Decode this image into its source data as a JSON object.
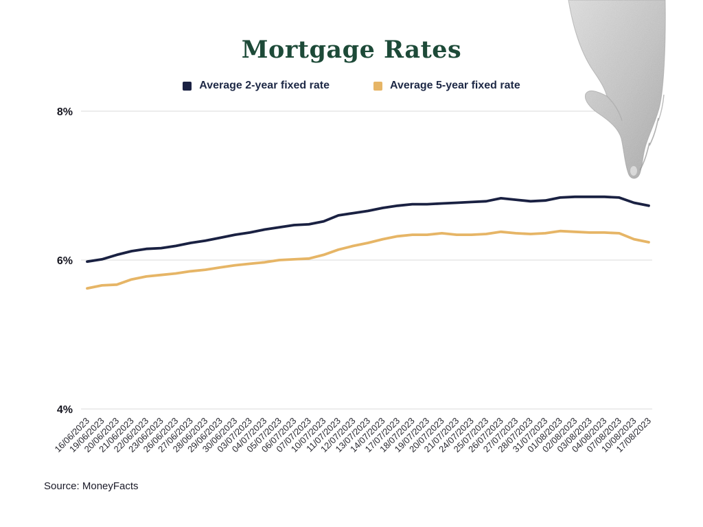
{
  "title": "Mortgage Rates",
  "title_color": "#1d4a38",
  "source": "Source: MoneyFacts",
  "chart_data": {
    "type": "line",
    "title": "Mortgage Rates",
    "x": [
      "16/06/2023",
      "19/06/2023",
      "20/06/2023",
      "21/06/2023",
      "22/06/2023",
      "23/06/2023",
      "26/06/2023",
      "27/06/2023",
      "28/06/2023",
      "29/06/2023",
      "30/06/2023",
      "03/07/2023",
      "04/07/2023",
      "05/07/2023",
      "06/07/2023",
      "07/07/2023",
      "10/07/2023",
      "11/07/2023",
      "12/07/2023",
      "13/07/2023",
      "14/07/2023",
      "17/07/2023",
      "18/07/2023",
      "19/07/2023",
      "20/07/2023",
      "21/07/2023",
      "24/07/2023",
      "25/07/2023",
      "26/07/2023",
      "27/07/2023",
      "28/07/2023",
      "31/07/2023",
      "01/08/2023",
      "02/08/2023",
      "03/08/2023",
      "04/08/2023",
      "07/08/2023",
      "10/08/2023",
      "17/08/2023"
    ],
    "series": [
      {
        "name": "Average 2-year fixed rate",
        "color": "#1a2142",
        "values": [
          5.98,
          6.01,
          6.07,
          6.12,
          6.15,
          6.16,
          6.19,
          6.23,
          6.26,
          6.3,
          6.34,
          6.37,
          6.41,
          6.44,
          6.47,
          6.48,
          6.52,
          6.6,
          6.63,
          6.66,
          6.7,
          6.73,
          6.75,
          6.75,
          6.76,
          6.77,
          6.78,
          6.79,
          6.83,
          6.81,
          6.79,
          6.8,
          6.84,
          6.85,
          6.85,
          6.85,
          6.84,
          6.77,
          6.73
        ]
      },
      {
        "name": "Average 5-year fixed rate",
        "color": "#e6b566",
        "values": [
          5.62,
          5.66,
          5.67,
          5.74,
          5.78,
          5.8,
          5.82,
          5.85,
          5.87,
          5.9,
          5.93,
          5.95,
          5.97,
          6.0,
          6.01,
          6.02,
          6.07,
          6.14,
          6.19,
          6.23,
          6.28,
          6.32,
          6.34,
          6.34,
          6.36,
          6.34,
          6.34,
          6.35,
          6.38,
          6.36,
          6.35,
          6.36,
          6.39,
          6.38,
          6.37,
          6.37,
          6.36,
          6.28,
          6.24
        ]
      }
    ],
    "ylim": [
      4,
      8
    ],
    "yticks": [
      {
        "value": 8,
        "label": "8%"
      },
      {
        "value": 6,
        "label": "6%"
      },
      {
        "value": 4,
        "label": "4%"
      }
    ],
    "grid": "horizontal",
    "legend_position": "top",
    "gridline_color": "#d8d8d8",
    "x_tick_rotation": -45
  },
  "decoration": {
    "hand_icon": "hand-pointing-down"
  }
}
